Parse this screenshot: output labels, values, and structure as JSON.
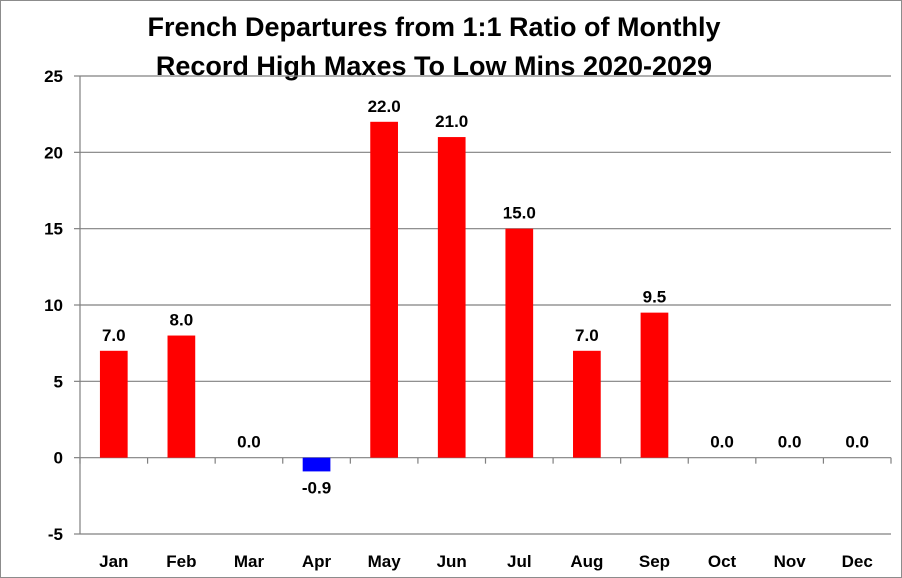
{
  "chart_data": {
    "type": "bar",
    "title_lines": [
      "French Departures from 1:1 Ratio of Monthly",
      "Record High Maxes To Low Mins 2020-2029"
    ],
    "xlabel": "",
    "ylabel": "",
    "categories": [
      "Jan",
      "Feb",
      "Mar",
      "Apr",
      "May",
      "Jun",
      "Jul",
      "Aug",
      "Sep",
      "Oct",
      "Nov",
      "Dec"
    ],
    "values": [
      7.0,
      8.0,
      0.0,
      -0.9,
      22.0,
      21.0,
      15.0,
      7.0,
      9.5,
      0.0,
      0.0,
      0.0
    ],
    "data_labels": [
      "7.0",
      "8.0",
      "0.0",
      "-0.9",
      "22.0",
      "21.0",
      "15.0",
      "7.0",
      "9.5",
      "0.0",
      "0.0",
      "0.0"
    ],
    "ylim": [
      -5,
      25
    ],
    "yticks": [
      -5,
      0,
      5,
      10,
      15,
      20,
      25
    ],
    "grid": true,
    "legend": "none",
    "colors": {
      "positive": "#ff0000",
      "negative": "#0000ff",
      "grid": "#808080",
      "axis": "#808080"
    }
  }
}
